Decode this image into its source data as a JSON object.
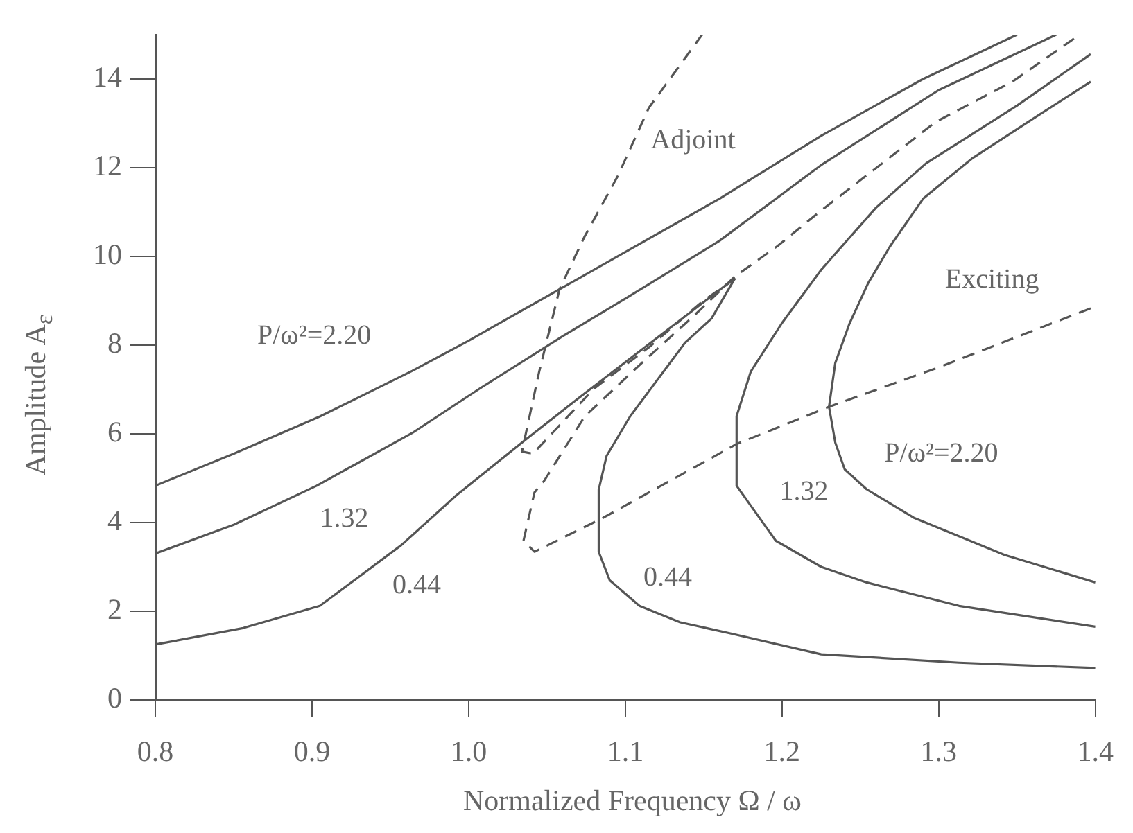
{
  "chart_data": {
    "type": "line",
    "xlabel": "Normalized Frequency Ω / ω",
    "ylabel": "Amplitude A$_{ε}$",
    "xlim": [
      0.8,
      1.4
    ],
    "xticks": [
      0.8,
      0.9,
      {
        "value": 1,
        "label": "1.0"
      },
      1.1,
      1.2,
      1.3,
      1.4
    ],
    "ylim": [
      0,
      15
    ],
    "yticks": [
      0,
      2,
      4,
      6,
      8,
      10,
      12,
      14
    ],
    "grid": false,
    "legend": false,
    "marker": "none",
    "series": [
      {
        "name": "P/ω²=2.20",
        "color": "#555555",
        "line_style": "solid",
        "x": [
          0.8,
          0.85,
          0.905,
          0.964,
          1.0,
          1.058,
          1.1,
          1.16,
          1.225,
          1.29,
          1.35
        ],
        "values": [
          4.83,
          5.55,
          6.39,
          7.42,
          8.1,
          9.26,
          10.1,
          11.3,
          12.72,
          14.0,
          15.0
        ]
      },
      {
        "name": "1.32",
        "color": "#555555",
        "line_style": "solid",
        "x": [
          0.8,
          0.85,
          0.903,
          0.964,
          1.007,
          1.06,
          1.1,
          1.16,
          1.225,
          1.3,
          1.375
        ],
        "values": [
          3.3,
          3.95,
          4.83,
          6.02,
          7.02,
          8.2,
          9.05,
          10.35,
          12.06,
          13.75,
          15.0
        ]
      },
      {
        "name": "0.44",
        "color": "#555555",
        "line_style": "solid",
        "x": [
          0.8,
          0.856,
          0.905,
          0.957,
          0.992,
          1.036,
          1.07,
          1.109,
          1.14,
          1.17
        ],
        "values": [
          1.25,
          1.62,
          2.12,
          3.49,
          4.61,
          5.86,
          6.8,
          7.86,
          8.7,
          9.51
        ]
      },
      {
        "name": "0.44",
        "color": "#555555",
        "line_style": "solid",
        "x": [
          1.17,
          1.155,
          1.138,
          1.103,
          1.088,
          1.083,
          1.083,
          1.09,
          1.109,
          1.135,
          1.167,
          1.225,
          1.313,
          1.4
        ],
        "values": [
          9.51,
          8.6,
          8.05,
          6.39,
          5.5,
          4.74,
          3.34,
          2.7,
          2.12,
          1.75,
          1.5,
          1.03,
          0.84,
          0.72
        ]
      },
      {
        "name": "1.32",
        "color": "#555555",
        "line_style": "solid",
        "x": [
          1.397,
          1.35,
          1.292,
          1.26,
          1.225,
          1.2,
          1.18,
          1.171,
          1.171,
          1.196,
          1.225,
          1.254,
          1.313,
          1.4
        ],
        "values": [
          14.56,
          13.4,
          12.1,
          11.1,
          9.7,
          8.5,
          7.4,
          6.4,
          4.83,
          3.59,
          3.0,
          2.65,
          2.12,
          1.65
        ]
      },
      {
        "name": "P/ω²=2.20",
        "color": "#555555",
        "line_style": "solid",
        "x": [
          1.397,
          1.36,
          1.321,
          1.29,
          1.269,
          1.255,
          1.243,
          1.234,
          1.23,
          1.234,
          1.24,
          1.254,
          1.284,
          1.342,
          1.4
        ],
        "values": [
          13.94,
          13.1,
          12.2,
          11.3,
          10.23,
          9.4,
          8.48,
          7.6,
          6.61,
          5.8,
          5.2,
          4.75,
          4.11,
          3.27,
          2.65
        ]
      },
      {
        "name": "Exciting",
        "color": "#555555",
        "line_style": "dashed",
        "x": [
          1.397,
          1.3,
          1.23,
          1.171,
          1.086,
          1.042,
          1.035,
          1.042,
          1.048,
          1.074,
          1.109,
          1.144,
          1.17,
          1.197,
          1.223,
          1.298,
          1.347,
          1.39
        ],
        "values": [
          8.83,
          7.5,
          6.61,
          5.77,
          4.11,
          3.34,
          3.59,
          4.68,
          4.93,
          6.39,
          7.55,
          8.67,
          9.55,
          10.23,
          10.98,
          13.03,
          13.94,
          15.0
        ]
      },
      {
        "name": "Adjoint",
        "color": "#555555",
        "line_style": "dashed",
        "x": [
          1.17,
          1.149,
          1.115,
          1.08,
          1.041,
          1.034,
          1.045,
          1.058,
          1.074,
          1.095,
          1.115,
          1.149
        ],
        "values": [
          9.5,
          8.98,
          7.95,
          7.02,
          5.55,
          5.6,
          7.4,
          9.26,
          10.45,
          11.8,
          13.35,
          15.0
        ]
      }
    ]
  }
}
